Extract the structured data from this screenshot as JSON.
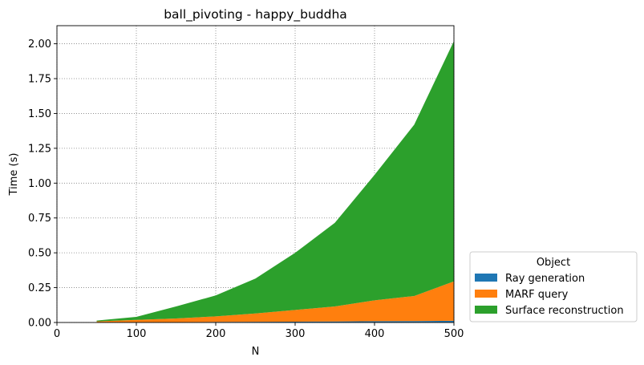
{
  "chart_data": {
    "type": "area",
    "stacked": true,
    "title": "ball_pivoting - happy_buddha",
    "xlabel": "N",
    "ylabel": "Time (s)",
    "xlim": [
      0,
      500
    ],
    "ylim": [
      0,
      2.13
    ],
    "xticks": [
      0,
      100,
      200,
      300,
      400,
      500
    ],
    "xtick_labels": [
      "0",
      "100",
      "200",
      "300",
      "400",
      "500"
    ],
    "yticks": [
      0,
      0.25,
      0.5,
      0.75,
      1.0,
      1.25,
      1.5,
      1.75,
      2.0
    ],
    "ytick_labels": [
      "0.00",
      "0.25",
      "0.50",
      "0.75",
      "1.00",
      "1.25",
      "1.50",
      "1.75",
      "2.00"
    ],
    "grid": true,
    "legend": {
      "title": "Object",
      "placement": "outside-bottom-right"
    },
    "x": [
      50,
      100,
      150,
      200,
      250,
      300,
      350,
      400,
      450,
      500
    ],
    "series": [
      {
        "name": "Ray generation",
        "color": "#1f77b4",
        "values": [
          0.001,
          0.002,
          0.003,
          0.004,
          0.005,
          0.006,
          0.007,
          0.009,
          0.01,
          0.012
        ]
      },
      {
        "name": "MARF query",
        "color": "#ff7f0e",
        "values": [
          0.007,
          0.017,
          0.026,
          0.04,
          0.06,
          0.084,
          0.108,
          0.15,
          0.18,
          0.283
        ]
      },
      {
        "name": "Surface reconstruction",
        "color": "#2ca02c",
        "values": [
          0.006,
          0.021,
          0.086,
          0.15,
          0.25,
          0.41,
          0.6,
          0.9,
          1.23,
          1.725
        ]
      }
    ]
  }
}
